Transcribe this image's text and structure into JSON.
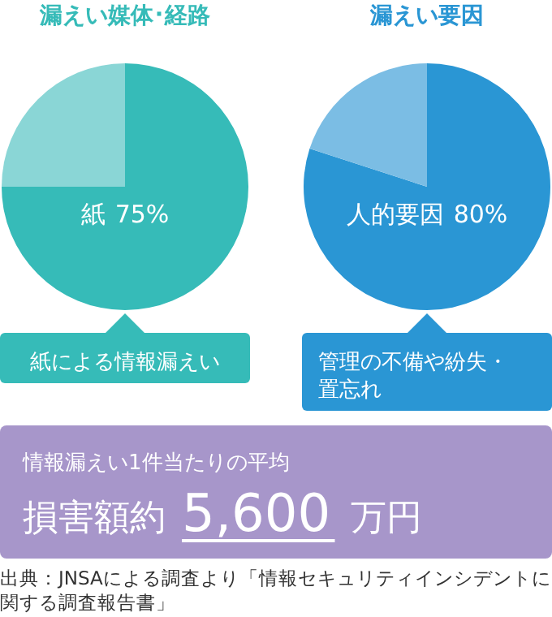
{
  "chart_data": [
    {
      "type": "pie",
      "title": "漏えい媒体･経路",
      "categories": [
        "紙",
        null
      ],
      "values": [
        75,
        25
      ],
      "colors": [
        "#36bbb8",
        "#8ad6d6"
      ],
      "value_labels": [
        "75%",
        null
      ],
      "annotations": [
        "紙による情報漏えい"
      ]
    },
    {
      "type": "pie",
      "title": "漏えい要因",
      "categories": [
        "人的要因",
        null
      ],
      "values": [
        80,
        20
      ],
      "colors": [
        "#2a96d4",
        "#7bbde4"
      ],
      "value_labels": [
        "80%",
        null
      ],
      "annotations": [
        "管理の不備や紛失・置忘れ"
      ]
    },
    {
      "type": "other",
      "title": "情報漏えい1件当たりの平均",
      "annotations": [
        "損害額約",
        "5,600",
        "万円",
        "出典：JNSAによる調査より「情報セキュリティインシデントに関する調査報告書」"
      ]
    }
  ]
}
